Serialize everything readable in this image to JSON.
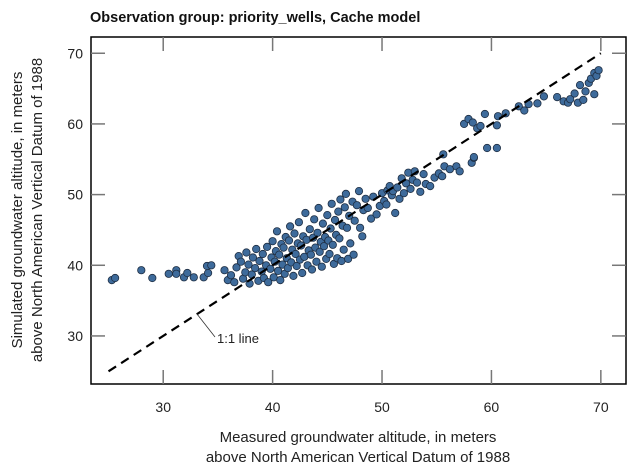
{
  "chart_data": {
    "type": "scatter",
    "title": "Observation group: priority_wells, Cache model",
    "xlabel": [
      "Measured groundwater altitude, in meters",
      "above North American Vertical Datum of 1988"
    ],
    "ylabel": [
      "Simulated groundwater altitude, in meters",
      "above North American Vertical Datum of 1988"
    ],
    "xlim": [
      23.4,
      72.3
    ],
    "ylim": [
      23.2,
      72.3
    ],
    "xticks": [
      30,
      40,
      50,
      60,
      70
    ],
    "yticks": [
      30,
      40,
      50,
      60,
      70
    ],
    "grid": false,
    "reference_line": {
      "label": "1:1 line",
      "x": [
        25,
        70
      ],
      "y": [
        25,
        70
      ],
      "style": "dashed"
    },
    "colors": {
      "marker_fill": "#3e6b9b",
      "marker_edge": "#1f2f44",
      "line": "#000000"
    },
    "series": [
      {
        "name": "priority_wells",
        "points": [
          [
            25.3,
            37.9
          ],
          [
            25.6,
            38.2
          ],
          [
            28.0,
            39.3
          ],
          [
            29.0,
            38.2
          ],
          [
            30.5,
            38.8
          ],
          [
            31.2,
            39.3
          ],
          [
            31.2,
            38.8
          ],
          [
            31.9,
            38.3
          ],
          [
            32.2,
            38.9
          ],
          [
            32.8,
            38.3
          ],
          [
            33.7,
            38.3
          ],
          [
            34.1,
            38.9
          ],
          [
            34.0,
            39.9
          ],
          [
            34.4,
            40.0
          ],
          [
            35.6,
            39.3
          ],
          [
            35.9,
            37.9
          ],
          [
            36.2,
            38.6
          ],
          [
            36.5,
            37.6
          ],
          [
            36.7,
            39.7
          ],
          [
            36.9,
            41.3
          ],
          [
            37.1,
            40.5
          ],
          [
            37.3,
            38.1
          ],
          [
            37.5,
            39.0
          ],
          [
            37.6,
            41.8
          ],
          [
            37.8,
            40.1
          ],
          [
            37.9,
            37.4
          ],
          [
            38.1,
            38.7
          ],
          [
            38.2,
            41.1
          ],
          [
            38.4,
            39.6
          ],
          [
            38.5,
            42.3
          ],
          [
            38.7,
            37.8
          ],
          [
            38.8,
            40.6
          ],
          [
            39.0,
            39.1
          ],
          [
            39.1,
            41.6
          ],
          [
            39.2,
            38.2
          ],
          [
            39.4,
            40.0
          ],
          [
            39.5,
            42.6
          ],
          [
            39.6,
            37.6
          ],
          [
            39.8,
            39.5
          ],
          [
            39.9,
            41.1
          ],
          [
            40.0,
            43.4
          ],
          [
            40.1,
            38.3
          ],
          [
            40.2,
            40.5
          ],
          [
            40.3,
            42.0
          ],
          [
            40.4,
            44.8
          ],
          [
            40.5,
            39.2
          ],
          [
            40.6,
            41.5
          ],
          [
            40.7,
            37.9
          ],
          [
            40.8,
            43.0
          ],
          [
            40.9,
            40.1
          ],
          [
            41.0,
            42.5
          ],
          [
            41.1,
            38.8
          ],
          [
            41.2,
            44.0
          ],
          [
            41.3,
            41.0
          ],
          [
            41.4,
            39.6
          ],
          [
            41.5,
            43.5
          ],
          [
            41.6,
            45.5
          ],
          [
            41.7,
            40.4
          ],
          [
            41.8,
            42.2
          ],
          [
            41.9,
            38.5
          ],
          [
            42.0,
            44.5
          ],
          [
            42.1,
            41.6
          ],
          [
            42.2,
            39.9
          ],
          [
            42.3,
            43.1
          ],
          [
            42.4,
            46.1
          ],
          [
            42.5,
            40.8
          ],
          [
            42.6,
            42.8
          ],
          [
            42.7,
            38.9
          ],
          [
            42.8,
            44.1
          ],
          [
            42.9,
            41.2
          ],
          [
            43.0,
            47.4
          ],
          [
            43.1,
            43.6
          ],
          [
            43.2,
            40.0
          ],
          [
            43.3,
            42.1
          ],
          [
            43.4,
            45.1
          ],
          [
            43.5,
            41.5
          ],
          [
            43.6,
            39.4
          ],
          [
            43.7,
            43.9
          ],
          [
            43.8,
            46.5
          ],
          [
            43.9,
            42.5
          ],
          [
            44.0,
            40.5
          ],
          [
            44.1,
            44.6
          ],
          [
            44.2,
            48.1
          ],
          [
            44.3,
            41.9
          ],
          [
            44.4,
            43.3
          ],
          [
            44.5,
            39.8
          ],
          [
            44.6,
            45.9
          ],
          [
            44.7,
            42.7
          ],
          [
            44.8,
            44.0
          ],
          [
            44.9,
            40.9
          ],
          [
            45.0,
            47.1
          ],
          [
            45.1,
            43.5
          ],
          [
            45.2,
            41.6
          ],
          [
            45.3,
            45.2
          ],
          [
            45.4,
            48.7
          ],
          [
            45.5,
            42.9
          ],
          [
            45.6,
            40.2
          ],
          [
            45.7,
            46.4
          ],
          [
            45.8,
            44.3
          ],
          [
            45.9,
            41.0
          ],
          [
            46.0,
            47.6
          ],
          [
            46.1,
            43.8
          ],
          [
            46.2,
            49.3
          ],
          [
            46.3,
            40.6
          ],
          [
            46.4,
            45.6
          ],
          [
            46.5,
            42.2
          ],
          [
            46.6,
            48.2
          ],
          [
            46.7,
            50.1
          ],
          [
            46.8,
            45.3
          ],
          [
            46.9,
            40.9
          ],
          [
            47.0,
            47.0
          ],
          [
            47.1,
            43.1
          ],
          [
            47.3,
            49.0
          ],
          [
            47.4,
            41.5
          ],
          [
            47.5,
            46.3
          ],
          [
            47.7,
            48.5
          ],
          [
            47.9,
            50.5
          ],
          [
            48.0,
            45.3
          ],
          [
            48.2,
            44.1
          ],
          [
            48.3,
            47.8
          ],
          [
            48.5,
            49.4
          ],
          [
            48.7,
            48.1
          ],
          [
            49.0,
            46.6
          ],
          [
            49.2,
            49.7
          ],
          [
            49.5,
            47.2
          ],
          [
            49.8,
            48.4
          ],
          [
            50.0,
            50.2
          ],
          [
            50.2,
            49.1
          ],
          [
            50.4,
            48.6
          ],
          [
            50.5,
            50.6
          ],
          [
            50.7,
            51.2
          ],
          [
            50.9,
            49.9
          ],
          [
            51.0,
            50.5
          ],
          [
            51.2,
            47.4
          ],
          [
            51.4,
            51.0
          ],
          [
            51.6,
            49.4
          ],
          [
            51.8,
            52.3
          ],
          [
            52.0,
            50.2
          ],
          [
            52.2,
            51.6
          ],
          [
            52.4,
            53.1
          ],
          [
            52.6,
            50.8
          ],
          [
            52.8,
            52.1
          ],
          [
            53.0,
            53.3
          ],
          [
            53.2,
            51.7
          ],
          [
            53.5,
            50.4
          ],
          [
            53.8,
            52.9
          ],
          [
            54.0,
            51.5
          ],
          [
            54.4,
            51.2
          ],
          [
            54.8,
            52.4
          ],
          [
            55.2,
            53.0
          ],
          [
            55.5,
            52.6
          ],
          [
            55.6,
            55.7
          ],
          [
            55.7,
            54.0
          ],
          [
            56.2,
            53.6
          ],
          [
            56.8,
            54.0
          ],
          [
            57.1,
            53.3
          ],
          [
            57.5,
            60.0
          ],
          [
            57.9,
            60.7
          ],
          [
            58.2,
            54.5
          ],
          [
            58.3,
            60.2
          ],
          [
            58.4,
            55.2
          ],
          [
            58.4,
            55.3
          ],
          [
            58.7,
            59.4
          ],
          [
            59.0,
            59.7
          ],
          [
            59.4,
            61.4
          ],
          [
            59.6,
            56.6
          ],
          [
            60.5,
            56.6
          ],
          [
            60.5,
            59.8
          ],
          [
            60.6,
            61.1
          ],
          [
            61.3,
            61.5
          ],
          [
            62.5,
            62.5
          ],
          [
            63.0,
            61.9
          ],
          [
            63.4,
            62.8
          ],
          [
            64.2,
            62.9
          ],
          [
            64.8,
            63.9
          ],
          [
            66.0,
            63.8
          ],
          [
            66.6,
            63.2
          ],
          [
            67.0,
            63.0
          ],
          [
            67.2,
            63.5
          ],
          [
            67.6,
            64.3
          ],
          [
            67.9,
            63.0
          ],
          [
            68.1,
            65.5
          ],
          [
            68.4,
            63.4
          ],
          [
            68.6,
            64.6
          ],
          [
            68.9,
            65.8
          ],
          [
            69.1,
            66.4
          ],
          [
            69.4,
            64.2
          ],
          [
            69.4,
            67.2
          ],
          [
            69.6,
            66.8
          ],
          [
            69.8,
            67.6
          ]
        ]
      }
    ]
  }
}
